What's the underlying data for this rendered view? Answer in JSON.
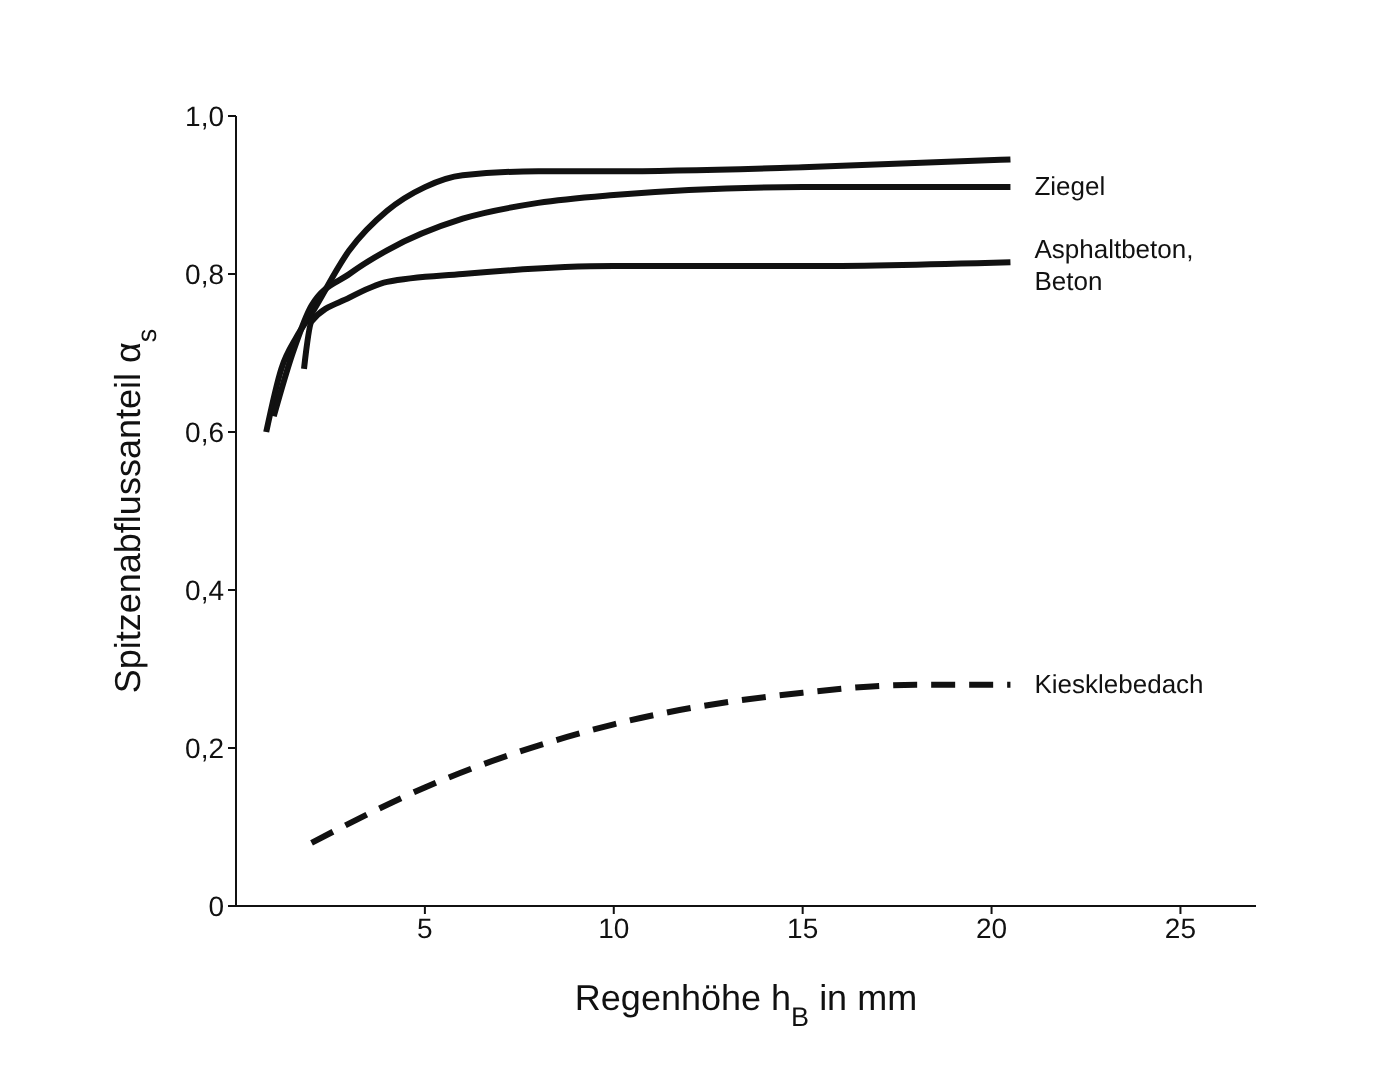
{
  "chart_data": {
    "type": "line",
    "xlabel": "Regenhöhe h$_{B}$ in mm",
    "ylabel": "Spitzenabflussanteil α$_{s}$",
    "xlim": [
      0,
      27
    ],
    "xticks": [
      5,
      10,
      15,
      20,
      25
    ],
    "ylim": [
      0,
      1
    ],
    "yticks": [
      {
        "value": 0,
        "label": "0"
      },
      {
        "value": 0.2,
        "label": "0,2"
      },
      {
        "value": 0.4,
        "label": "0,4"
      },
      {
        "value": 0.6,
        "label": "0,6"
      },
      {
        "value": 0.8,
        "label": "0,8"
      },
      {
        "value": 1,
        "label": "1,0"
      }
    ],
    "marker": "none",
    "series": [
      {
        "color": "#111111",
        "line_style": "solid",
        "x": [
          0.8,
          1.2,
          1.6,
          2,
          3,
          4,
          5,
          6,
          8,
          10,
          15,
          20.5
        ],
        "values": [
          0.6,
          0.68,
          0.72,
          0.75,
          0.83,
          0.88,
          0.91,
          0.925,
          0.93,
          0.93,
          0.935,
          0.945
        ]
      },
      {
        "name": "Ziegel",
        "color": "#111111",
        "line_style": "solid",
        "x": [
          1,
          1.5,
          2,
          3,
          4,
          6,
          8,
          10,
          15,
          20.5
        ],
        "values": [
          0.62,
          0.7,
          0.76,
          0.8,
          0.83,
          0.87,
          0.89,
          0.9,
          0.91,
          0.91
        ]
      },
      {
        "name": "Asphaltbeton, Beton",
        "color": "#111111",
        "line_style": "solid",
        "x": [
          1.8,
          2,
          3,
          4,
          6,
          10,
          15,
          20.5
        ],
        "values": [
          0.68,
          0.74,
          0.77,
          0.79,
          0.8,
          0.81,
          0.81,
          0.815
        ]
      },
      {
        "name": "Kiesklebedach",
        "color": "#111111",
        "line_style": "dashed",
        "x": [
          2,
          5,
          10,
          15,
          18,
          20.5
        ],
        "values": [
          0.08,
          0.15,
          0.23,
          0.27,
          0.28,
          0.28
        ]
      }
    ]
  }
}
